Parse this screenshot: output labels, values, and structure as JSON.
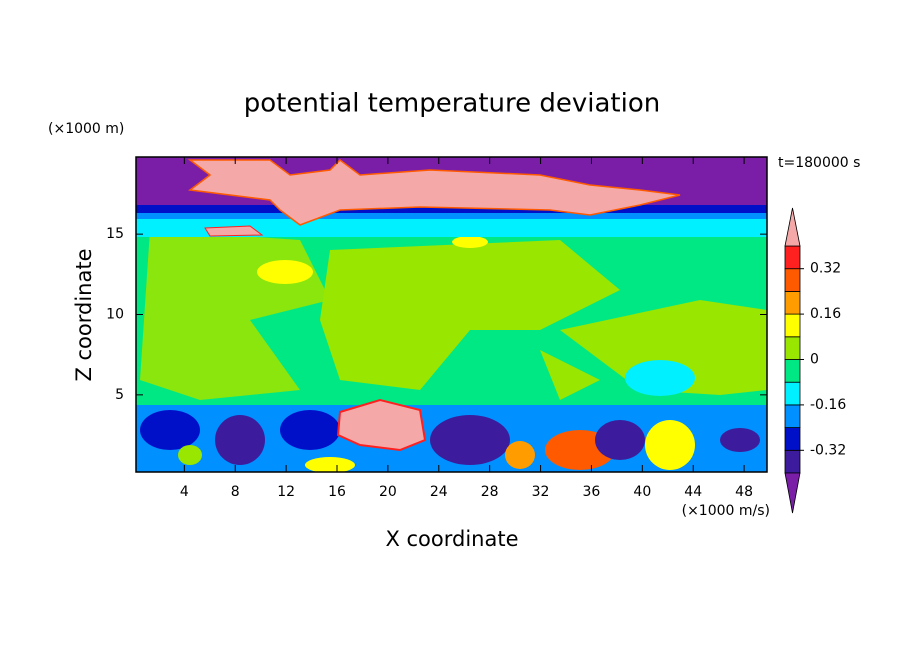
{
  "chart_data": {
    "type": "contour",
    "title": "potential temperature deviation",
    "x_label": "X coordinate",
    "y_label": "Z coordinate",
    "x_unit": "(×1000 m/s)",
    "y_unit": "(×1000 m)",
    "annotation": "t=180000 s",
    "xlim": [
      0.2,
      49.8
    ],
    "xticks": [
      4,
      8,
      12,
      16,
      20,
      24,
      28,
      32,
      36,
      40,
      44,
      48
    ],
    "ylim": [
      0.2,
      19.8
    ],
    "yticks": [
      5,
      10,
      15
    ],
    "colorbar": {
      "levels": [
        -0.4,
        -0.32,
        -0.24,
        -0.16,
        -0.08,
        0,
        0.08,
        0.16,
        0.24,
        0.32,
        0.4
      ],
      "ticks": [
        -0.32,
        -0.16,
        0,
        0.16,
        0.32
      ],
      "colors": [
        "#3c1c9c",
        "#0010c8",
        "#0090ff",
        "#00f0ff",
        "#00e884",
        "#99e600",
        "#ffff00",
        "#ff9c00",
        "#ff5a00",
        "#ff2020"
      ],
      "under_color": "#7a1ea8",
      "over_color": "#f4a8a8"
    }
  }
}
